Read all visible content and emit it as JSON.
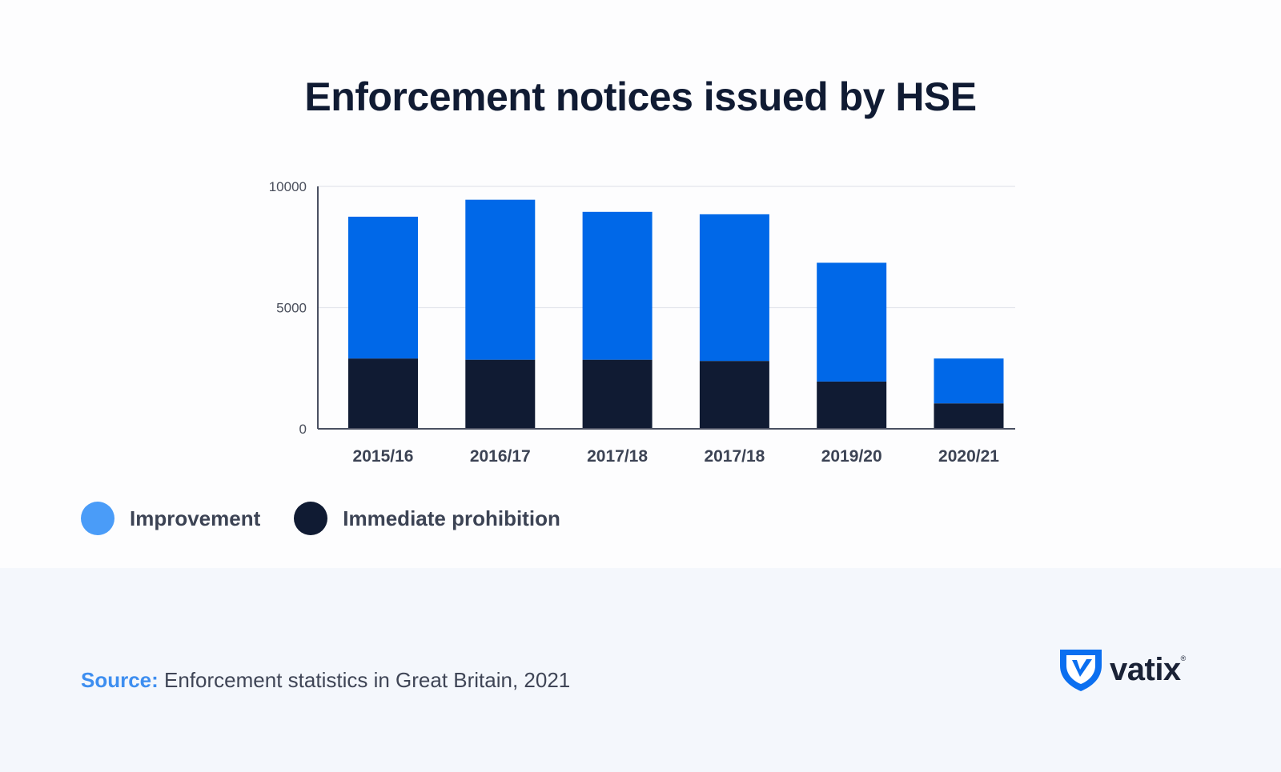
{
  "chart_data": {
    "type": "bar",
    "stacked": true,
    "title": "Enforcement notices issued by HSE",
    "categories": [
      "2015/16",
      "2016/17",
      "2017/18",
      "2017/18",
      "2019/20",
      "2020/21"
    ],
    "series": [
      {
        "name": "Immediate prohibition",
        "color": "#101b33",
        "values": [
          2900,
          2850,
          2850,
          2800,
          1950,
          1050
        ]
      },
      {
        "name": "Improvement",
        "color": "#0068e8",
        "values": [
          5850,
          6600,
          6100,
          6050,
          4900,
          1850
        ]
      }
    ],
    "ylim": [
      0,
      10000
    ],
    "yticks": [
      0,
      5000,
      10000
    ],
    "xlabel": "",
    "ylabel": "",
    "grid": true,
    "legend": "bottom-left"
  },
  "legend": {
    "items": [
      {
        "label": "Improvement",
        "color": "#4a9cf8"
      },
      {
        "label": "Immediate prohibition",
        "color": "#101b33"
      }
    ]
  },
  "footer": {
    "source_label": "Source:",
    "source_text": " Enforcement statistics in Great Britain, 2021"
  },
  "logo": {
    "text": "vatix",
    "mark": "®",
    "icon": "vatix-shield-icon",
    "colors": {
      "shield": "#0b6ff0"
    }
  }
}
